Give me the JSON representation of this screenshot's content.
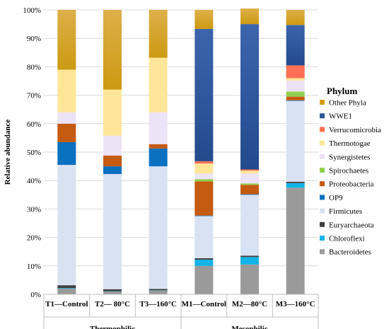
{
  "chart_data": {
    "type": "bar",
    "stacked": true,
    "ylabel": "Relative abundance",
    "ylim": [
      0,
      100
    ],
    "yticks": [
      "0%",
      "10%",
      "20%",
      "30%",
      "40%",
      "50%",
      "60%",
      "70%",
      "80%",
      "90%",
      "100%"
    ],
    "categories": [
      "T1—Control",
      "T2— 80°C",
      "T3—160°C",
      "M1—Control",
      "M2—80°C",
      "M3—160°C"
    ],
    "groups": [
      {
        "label": "Thermophilic",
        "categories": [
          0,
          1,
          2
        ]
      },
      {
        "label": "Mesophilic",
        "categories": [
          3,
          4,
          5
        ]
      }
    ],
    "legend": {
      "title": "Phylum",
      "position": "right"
    },
    "series": [
      {
        "name": "Bacteroidetes",
        "color": "#9a9a9a",
        "values": [
          2.0,
          1.0,
          1.3,
          10.0,
          10.5,
          37.5
        ]
      },
      {
        "name": "Chloroflexi",
        "color": "#12b3e6",
        "values": [
          0.2,
          0.1,
          0.1,
          2.2,
          2.6,
          1.6
        ]
      },
      {
        "name": "Euryarchaeota",
        "color": "#404040",
        "values": [
          1.0,
          0.7,
          0.5,
          0.5,
          0.5,
          0.5
        ]
      },
      {
        "name": "Firmicutes",
        "color": "#d9e2f3",
        "values": [
          42.3,
          40.5,
          43.1,
          14.8,
          21.4,
          28.4
        ]
      },
      {
        "name": "OP9",
        "color": "#0a70c0",
        "values": [
          8.0,
          2.7,
          6.3,
          0.2,
          0.2,
          0.2
        ]
      },
      {
        "name": "Proteobacteria",
        "color": "#c55a11",
        "values": [
          6.5,
          3.8,
          1.5,
          12.0,
          3.3,
          1.3
        ]
      },
      {
        "name": "Spirochaetes",
        "color": "#92d050",
        "values": [
          0.0,
          0.0,
          0.0,
          0.8,
          0.5,
          1.8
        ]
      },
      {
        "name": "Synergistetes",
        "color": "#ede3f6",
        "values": [
          4.0,
          7.0,
          11.2,
          2.0,
          3.5,
          3.9
        ]
      },
      {
        "name": "Thermotogae",
        "color": "#ffe699",
        "values": [
          15.0,
          16.2,
          19.2,
          3.5,
          1.0,
          0.8
        ]
      },
      {
        "name": "Verrucomicrobia",
        "color": "#ff6f55",
        "values": [
          0.0,
          0.0,
          0.0,
          0.8,
          0.4,
          4.5
        ]
      },
      {
        "name": "WWE1",
        "color": "#2f5597",
        "values": [
          0.0,
          0.0,
          0.0,
          46.5,
          51.1,
          14.2
        ]
      },
      {
        "name": "Other Phyla",
        "color": "#d4a017",
        "values": [
          21.0,
          28.0,
          16.8,
          6.7,
          5.5,
          5.3
        ]
      }
    ]
  }
}
